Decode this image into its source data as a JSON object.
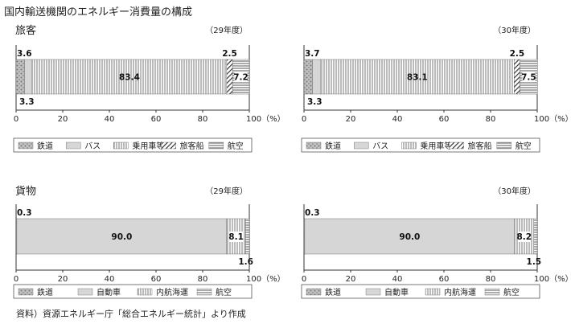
{
  "page_title": "国内輸送機関のエネルギー消費量の構成",
  "source_note": "資料）資源エネルギー庁「総合エネルギー統計」より作成",
  "colors": {
    "frame": "#333333",
    "bar_fill": "#d6d6d6",
    "hatch": "#444444",
    "dots_bg": "#c0c0c0",
    "dots_fg": "#777777",
    "legend_box": "#555555"
  },
  "chart_data": [
    {
      "type": "bar",
      "orientation": "horizontal-stacked",
      "section_label": "旅客",
      "period": "（29年度）",
      "segments": [
        {
          "name": "鉄道",
          "value": 3.6,
          "label": "3.6",
          "label_pos": "above-start",
          "pattern": "dots"
        },
        {
          "name": "バス",
          "value": 3.3,
          "label": "3.3",
          "label_pos": "below-start",
          "pattern": "solid-gray"
        },
        {
          "name": "乗用車等",
          "value": 83.4,
          "label": "83.4",
          "label_pos": "inside",
          "pattern": "vertical-lines"
        },
        {
          "name": "旅客船",
          "value": 2.5,
          "label": "2.5",
          "label_pos": "above-end",
          "pattern": "diagonal"
        },
        {
          "name": "航空",
          "value": 7.2,
          "label": "7.2",
          "label_pos": "inside-end",
          "pattern": "horizontal-lines"
        }
      ],
      "xlim": [
        0,
        100
      ],
      "ticks": [
        "0",
        "20",
        "40",
        "60",
        "80",
        "100（%）"
      ],
      "legend": [
        "鉄道",
        "バス",
        "乗用車等",
        "旅客船",
        "航空"
      ]
    },
    {
      "type": "bar",
      "orientation": "horizontal-stacked",
      "section_label": "",
      "period": "（30年度）",
      "segments": [
        {
          "name": "鉄道",
          "value": 3.7,
          "label": "3.7",
          "label_pos": "above-start",
          "pattern": "dots"
        },
        {
          "name": "バス",
          "value": 3.3,
          "label": "3.3",
          "label_pos": "below-start",
          "pattern": "solid-gray"
        },
        {
          "name": "乗用車等",
          "value": 83.1,
          "label": "83.1",
          "label_pos": "inside",
          "pattern": "vertical-lines"
        },
        {
          "name": "旅客船",
          "value": 2.5,
          "label": "2.5",
          "label_pos": "above-end",
          "pattern": "diagonal"
        },
        {
          "name": "航空",
          "value": 7.5,
          "label": "7.5",
          "label_pos": "inside-end",
          "pattern": "horizontal-lines"
        }
      ],
      "xlim": [
        0,
        100
      ],
      "ticks": [
        "0",
        "20",
        "40",
        "60",
        "80",
        "100（%）"
      ],
      "legend": [
        "鉄道",
        "バス",
        "乗用車等",
        "旅客船",
        "航空"
      ]
    },
    {
      "type": "bar",
      "orientation": "horizontal-stacked",
      "section_label": "貨物",
      "period": "（29年度）",
      "segments": [
        {
          "name": "鉄道",
          "value": 0.3,
          "label": "0.3",
          "label_pos": "above-start",
          "pattern": "dots"
        },
        {
          "name": "自動車",
          "value": 90.0,
          "label": "90.0",
          "label_pos": "inside",
          "pattern": "solid-gray"
        },
        {
          "name": "内航海運",
          "value": 8.1,
          "label": "8.1",
          "label_pos": "inside-end",
          "pattern": "vertical-lines"
        },
        {
          "name": "航空",
          "value": 1.6,
          "label": "1.6",
          "label_pos": "below-end",
          "pattern": "horizontal-lines"
        }
      ],
      "xlim": [
        0,
        100
      ],
      "ticks": [
        "0",
        "20",
        "40",
        "60",
        "80",
        "100（%）"
      ],
      "legend": [
        "鉄道",
        "自動車",
        "内航海運",
        "航空"
      ]
    },
    {
      "type": "bar",
      "orientation": "horizontal-stacked",
      "section_label": "",
      "period": "（30年度）",
      "segments": [
        {
          "name": "鉄道",
          "value": 0.3,
          "label": "0.3",
          "label_pos": "above-start",
          "pattern": "dots"
        },
        {
          "name": "自動車",
          "value": 90.0,
          "label": "90.0",
          "label_pos": "inside",
          "pattern": "solid-gray"
        },
        {
          "name": "内航海運",
          "value": 8.2,
          "label": "8.2",
          "label_pos": "inside-end",
          "pattern": "vertical-lines"
        },
        {
          "name": "航空",
          "value": 1.5,
          "label": "1.5",
          "label_pos": "below-end",
          "pattern": "horizontal-lines"
        }
      ],
      "xlim": [
        0,
        100
      ],
      "ticks": [
        "0",
        "20",
        "40",
        "60",
        "80",
        "100（%）"
      ],
      "legend": [
        "鉄道",
        "自動車",
        "内航海運",
        "航空"
      ]
    }
  ]
}
